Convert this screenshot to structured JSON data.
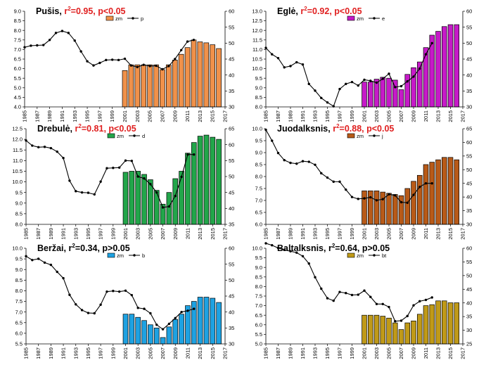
{
  "colors": {
    "stat_sig": "#e02020",
    "stat_ns": "#000000",
    "axis": "#000000",
    "line": "#000000"
  },
  "chart_data": [
    {
      "type": "bar+line",
      "panel": "top-left",
      "name": "Pušis",
      "stat": {
        "r": "r",
        "sup": "2",
        "rest": "=0.95, p<0.05",
        "significant": true
      },
      "bar_color": "#f0914a",
      "bar_label": "zm",
      "line_label": "p",
      "x_labels": [
        "1985",
        "1987",
        "1989",
        "1991",
        "1993",
        "1995",
        "1997",
        "1999",
        "2001",
        "2003",
        "2005",
        "2007",
        "2009",
        "2011",
        "2013",
        "2015",
        "2017"
      ],
      "xlim": [
        1985,
        2017
      ],
      "yleft": {
        "lim": [
          4.0,
          9.0
        ],
        "ticks": [
          "4.0",
          "4.5",
          "5.0",
          "5.5",
          "6.0",
          "6.5",
          "7.0",
          "7.5",
          "8.0",
          "8.5",
          "9.0"
        ]
      },
      "yright": {
        "lim": [
          30,
          60
        ],
        "ticks": [
          "30",
          "35",
          "40",
          "45",
          "50",
          "55",
          "60"
        ]
      },
      "bars": {
        "years": [
          2001,
          2002,
          2003,
          2004,
          2005,
          2006,
          2007,
          2008,
          2009,
          2010,
          2011,
          2012,
          2013,
          2014,
          2015,
          2016
        ],
        "values": [
          5.9,
          6.2,
          6.2,
          6.2,
          6.2,
          6.2,
          5.95,
          6.2,
          6.45,
          6.75,
          7.1,
          7.5,
          7.4,
          7.35,
          7.25,
          7.05
        ]
      },
      "line": {
        "years": [
          1985,
          1986,
          1987,
          1988,
          1989,
          1990,
          1991,
          1992,
          1993,
          1994,
          1995,
          1996,
          1997,
          1998,
          1999,
          2000,
          2001,
          2002,
          2003,
          2004,
          2005,
          2006,
          2007,
          2008,
          2009,
          2010,
          2011,
          2012
        ],
        "values": [
          48.7,
          49.2,
          49.3,
          49.4,
          51.0,
          53.2,
          53.8,
          53.2,
          50.8,
          47.4,
          44.3,
          43.0,
          43.8,
          44.7,
          44.8,
          44.7,
          45.1,
          43.0,
          42.5,
          43.2,
          42.8,
          42.9,
          41.8,
          42.8,
          45.0,
          47.8,
          50.5,
          51.0
        ]
      }
    },
    {
      "type": "bar+line",
      "panel": "top-right",
      "name": "Eglė",
      "stat": {
        "r": "r",
        "sup": "2",
        "rest": "=0.92, p<0.05",
        "significant": true
      },
      "bar_color": "#c61ac8",
      "bar_label": "zm",
      "line_label": "e",
      "x_labels": [
        "1985",
        "1987",
        "1989",
        "1991",
        "1993",
        "1995",
        "1997",
        "1999",
        "2001",
        "2003",
        "2005",
        "2007",
        "2009",
        "2011",
        "2013",
        "2015",
        "2017"
      ],
      "xlim": [
        1985,
        2017
      ],
      "yleft": {
        "lim": [
          8.0,
          13.0
        ],
        "ticks": [
          "8.0",
          "8.5",
          "9.0",
          "9.5",
          "10.0",
          "10.5",
          "11.0",
          "11.5",
          "12.0",
          "12.5",
          "13.0"
        ]
      },
      "yright": {
        "lim": [
          30,
          60
        ],
        "ticks": [
          "30",
          "35",
          "40",
          "45",
          "50",
          "55",
          "60"
        ]
      },
      "bars": {
        "years": [
          2001,
          2002,
          2003,
          2004,
          2005,
          2006,
          2007,
          2008,
          2009,
          2010,
          2011,
          2012,
          2013,
          2014,
          2015,
          2016
        ],
        "values": [
          9.3,
          9.3,
          9.45,
          9.55,
          9.5,
          9.4,
          8.9,
          9.7,
          10.05,
          10.35,
          11.1,
          11.75,
          11.95,
          12.2,
          12.3,
          12.3
        ]
      },
      "line": {
        "years": [
          1985,
          1986,
          1987,
          1988,
          1989,
          1990,
          1991,
          1992,
          1993,
          1994,
          1995,
          1996,
          1997,
          1998,
          1999,
          2000,
          2001,
          2002,
          2003,
          2004,
          2005,
          2006,
          2007,
          2008,
          2009,
          2010,
          2011,
          2012
        ],
        "values": [
          48.5,
          46.5,
          45.3,
          42.4,
          42.8,
          44.0,
          43.3,
          37.2,
          35.1,
          32.8,
          31.4,
          30.2,
          35.6,
          37.2,
          37.8,
          36.7,
          38.5,
          38.2,
          37.6,
          38.8,
          40.4,
          36.2,
          36.5,
          38.0,
          39.5,
          42.0,
          46.5,
          50.0
        ]
      }
    },
    {
      "type": "bar+line",
      "panel": "middle-left",
      "name": "Drebulė",
      "stat": {
        "r": "r",
        "sup": "2",
        "rest": "=0.81, p<0.05",
        "significant": true
      },
      "bar_color": "#22a64a",
      "bar_label": "zm",
      "line_label": "d",
      "x_labels": [
        "1985",
        "1987",
        "1989",
        "1991",
        "1993",
        "1995",
        "1997",
        "1999",
        "2001",
        "2003",
        "2005",
        "2007",
        "2009",
        "2011",
        "2013",
        "2015",
        "2017"
      ],
      "xlim": [
        1985,
        2017
      ],
      "yleft": {
        "lim": [
          8.0,
          12.5
        ],
        "ticks": [
          "8.0",
          "8.5",
          "9.0",
          "9.5",
          "10.0",
          "10.5",
          "11.0",
          "11.5",
          "12.0",
          "12.5"
        ]
      },
      "yright": {
        "lim": [
          35,
          65
        ],
        "ticks": [
          "35",
          "40",
          "45",
          "50",
          "55",
          "60",
          "65"
        ]
      },
      "bars": {
        "years": [
          2001,
          2002,
          2003,
          2004,
          2005,
          2006,
          2007,
          2008,
          2009,
          2010,
          2011,
          2012,
          2013,
          2014,
          2015,
          2016
        ],
        "values": [
          10.45,
          10.5,
          10.5,
          10.35,
          10.1,
          9.6,
          8.95,
          9.5,
          10.15,
          10.5,
          11.35,
          11.85,
          12.15,
          12.2,
          12.1,
          12.0
        ]
      },
      "line": {
        "years": [
          1985,
          1986,
          1987,
          1988,
          1989,
          1990,
          1991,
          1992,
          1993,
          1994,
          1995,
          1996,
          1997,
          1998,
          1999,
          2000,
          2001,
          2002,
          2003,
          2004,
          2005,
          2006,
          2007,
          2008,
          2009,
          2010,
          2011,
          2012
        ],
        "values": [
          61.3,
          59.7,
          59.2,
          59.3,
          58.9,
          57.8,
          55.8,
          48.7,
          45.4,
          45.0,
          44.9,
          44.4,
          48.4,
          52.6,
          52.7,
          52.8,
          55.0,
          54.9,
          50.0,
          49.4,
          47.6,
          45.0,
          40.3,
          40.6,
          43.9,
          49.9,
          56.9,
          56.9
        ]
      }
    },
    {
      "type": "bar+line",
      "panel": "middle-right",
      "name": "Juodalksnis",
      "stat": {
        "r": "r",
        "sup": "2",
        "rest": "=0.88, p<0.05",
        "significant": true
      },
      "bar_color": "#b85a18",
      "bar_label": "zm",
      "line_label": "j",
      "x_labels": [
        "1985",
        "1987",
        "1989",
        "1991",
        "1993",
        "1995",
        "1997",
        "1999",
        "2001",
        "2003",
        "2005",
        "2007",
        "2009",
        "2011",
        "2013",
        "2015",
        "2017"
      ],
      "xlim": [
        1985,
        2017
      ],
      "yleft": {
        "lim": [
          6.0,
          10.0
        ],
        "ticks": [
          "6.0",
          "6.5",
          "7.0",
          "7.5",
          "8.0",
          "8.5",
          "9.0",
          "9.5",
          "10.0"
        ]
      },
      "yright": {
        "lim": [
          30,
          65
        ],
        "ticks": [
          "30",
          "35",
          "40",
          "45",
          "50",
          "55",
          "60",
          "65"
        ]
      },
      "bars": {
        "years": [
          2001,
          2002,
          2003,
          2004,
          2005,
          2006,
          2007,
          2008,
          2009,
          2010,
          2011,
          2012,
          2013,
          2014,
          2015,
          2016
        ],
        "values": [
          7.4,
          7.4,
          7.4,
          7.35,
          7.3,
          7.25,
          7.2,
          7.5,
          7.8,
          8.05,
          8.5,
          8.6,
          8.7,
          8.8,
          8.8,
          8.7
        ]
      },
      "line": {
        "years": [
          1985,
          1986,
          1987,
          1988,
          1989,
          1990,
          1991,
          1992,
          1993,
          1994,
          1995,
          1996,
          1997,
          1998,
          1999,
          2000,
          2001,
          2002,
          2003,
          2004,
          2005,
          2006,
          2007,
          2008,
          2009,
          2010,
          2011,
          2012
        ],
        "values": [
          64.6,
          60.6,
          56.1,
          53.5,
          52.5,
          52.2,
          53.1,
          52.9,
          51.8,
          48.7,
          47.1,
          45.6,
          45.6,
          42.7,
          40.0,
          39.3,
          39.5,
          39.9,
          38.8,
          39.2,
          41.0,
          40.6,
          38.1,
          37.9,
          40.8,
          43.7,
          45.0,
          45.0
        ]
      }
    },
    {
      "type": "bar+line",
      "panel": "bottom-left",
      "name": "Beržai",
      "stat": {
        "r": "r",
        "sup": "2",
        "rest": "=0.34, p>0.05",
        "significant": false
      },
      "bar_color": "#1ea2e2",
      "bar_label": "zm",
      "line_label": "b",
      "x_labels": [
        "1985",
        "1987",
        "1989",
        "1991",
        "1993",
        "1995",
        "1997",
        "1999",
        "2001",
        "2003",
        "2005",
        "2007",
        "2009",
        "2011",
        "2013",
        "2015",
        "2017"
      ],
      "xlim": [
        1985,
        2017
      ],
      "yleft": {
        "lim": [
          5.5,
          10.0
        ],
        "ticks": [
          "5.5",
          "6.0",
          "6.5",
          "7.0",
          "7.5",
          "8.0",
          "8.5",
          "9.0",
          "9.5",
          "10.0"
        ]
      },
      "yright": {
        "lim": [
          30,
          60
        ],
        "ticks": [
          "30",
          "35",
          "40",
          "45",
          "50",
          "55",
          "60"
        ]
      },
      "bars": {
        "years": [
          2001,
          2002,
          2003,
          2004,
          2005,
          2006,
          2007,
          2008,
          2009,
          2010,
          2011,
          2012,
          2013,
          2014,
          2015,
          2016
        ],
        "values": [
          6.9,
          6.9,
          6.75,
          6.6,
          6.4,
          6.25,
          5.8,
          6.3,
          6.65,
          6.9,
          7.3,
          7.5,
          7.7,
          7.7,
          7.65,
          7.45
        ]
      },
      "line": {
        "years": [
          1985,
          1986,
          1987,
          1988,
          1989,
          1990,
          1991,
          1992,
          1993,
          1994,
          1995,
          1996,
          1997,
          1998,
          1999,
          2000,
          2001,
          2002,
          2003,
          2004,
          2005,
          2006,
          2007,
          2008,
          2009,
          2010,
          2011,
          2012
        ],
        "values": [
          57.5,
          56.3,
          56.7,
          55.5,
          54.8,
          52.6,
          50.6,
          45.4,
          42.4,
          40.6,
          39.7,
          39.6,
          42.3,
          46.4,
          46.6,
          46.4,
          46.7,
          45.3,
          41.3,
          41.0,
          39.6,
          36.0,
          34.6,
          36.3,
          38.1,
          40.0,
          40.4,
          41.0
        ]
      }
    },
    {
      "type": "bar+line",
      "panel": "bottom-right",
      "name": "Baltalksnis",
      "stat": {
        "r": "r",
        "sup": "2",
        "rest": "=0.64, p>0.05",
        "significant": false
      },
      "bar_color": "#c09a18",
      "bar_label": "zm",
      "line_label": "bt",
      "x_labels": [
        "1985",
        "1987",
        "1989",
        "1991",
        "1993",
        "1995",
        "1997",
        "1999",
        "2001",
        "2003",
        "2005",
        "2007",
        "2009",
        "2011",
        "2013",
        "2015",
        "2017"
      ],
      "xlim": [
        1985,
        2017
      ],
      "yleft": {
        "lim": [
          5.0,
          10.0
        ],
        "ticks": [
          "5.0",
          "5.5",
          "6.0",
          "6.5",
          "7.0",
          "7.5",
          "8.0",
          "8.5",
          "9.0",
          "9.5",
          "10.0"
        ]
      },
      "yright": {
        "lim": [
          25,
          60
        ],
        "ticks": [
          "25",
          "30",
          "35",
          "40",
          "45",
          "50",
          "55",
          "60"
        ]
      },
      "bars": {
        "years": [
          2001,
          2002,
          2003,
          2004,
          2005,
          2006,
          2007,
          2008,
          2009,
          2010,
          2011,
          2012,
          2013,
          2014,
          2015,
          2016
        ],
        "values": [
          6.5,
          6.5,
          6.5,
          6.45,
          6.35,
          6.1,
          5.75,
          6.1,
          6.2,
          6.55,
          7.0,
          7.05,
          7.25,
          7.25,
          7.15,
          7.15
        ]
      },
      "line": {
        "years": [
          1985,
          1986,
          1987,
          1988,
          1989,
          1990,
          1991,
          1992,
          1993,
          1994,
          1995,
          1996,
          1997,
          1998,
          1999,
          2000,
          2001,
          2002,
          2003,
          2004,
          2005,
          2006,
          2007,
          2008,
          2009,
          2010,
          2011,
          2012
        ],
        "values": [
          61.8,
          61.1,
          60.1,
          59.4,
          58.9,
          58.4,
          57.1,
          54.4,
          49.4,
          45.2,
          41.7,
          40.8,
          44.0,
          43.6,
          42.9,
          43.0,
          44.5,
          42.2,
          39.6,
          39.6,
          38.5,
          33.3,
          33.5,
          35.2,
          39.1,
          40.6,
          41.1,
          42.0
        ]
      }
    }
  ]
}
